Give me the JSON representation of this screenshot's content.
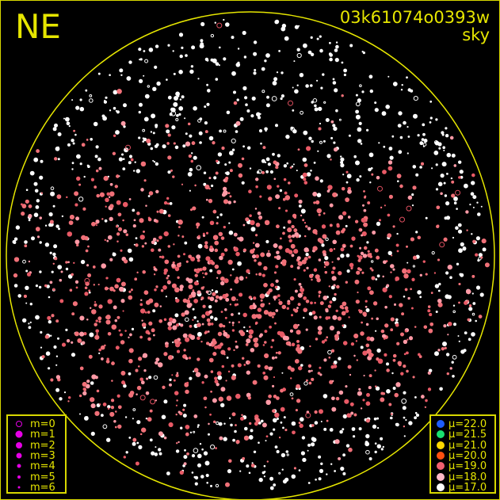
{
  "header": {
    "direction": "NE",
    "field_id": "03k61074o0393w",
    "mode": "sky"
  },
  "colors": {
    "frame": "#e6e600",
    "circle": "#e6e600",
    "legend_text": "#e6e600",
    "magnitude_symbol": "#e600e6",
    "background": "#000000"
  },
  "magnitude_legend": [
    {
      "label": "m=0",
      "style": "ring"
    },
    {
      "label": "m=1",
      "style": "filled"
    },
    {
      "label": "m=2",
      "style": "filled"
    },
    {
      "label": "m=3",
      "style": "filled"
    },
    {
      "label": "m=4",
      "style": "filled"
    },
    {
      "label": "m=5",
      "style": "filled"
    },
    {
      "label": "m=6",
      "style": "filled"
    }
  ],
  "surface_brightness_legend": [
    {
      "label": "μ=22.0",
      "color": "#1e5cff"
    },
    {
      "label": "μ=21.5",
      "color": "#18e070"
    },
    {
      "label": "μ=21.0",
      "color": "#ffd800"
    },
    {
      "label": "μ=20.0",
      "color": "#ff5010"
    },
    {
      "label": "μ=19.0",
      "color": "#f06070"
    },
    {
      "label": "μ=18.0",
      "color": "#ffb8c8"
    },
    {
      "label": "μ=17.0",
      "color": "#ffffff"
    }
  ]
}
